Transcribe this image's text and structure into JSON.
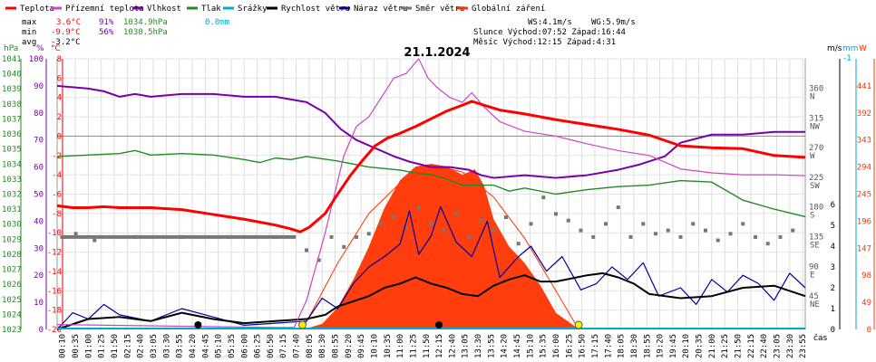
{
  "chart_data": {
    "type": "line",
    "title": "21.1.2024",
    "xlabel": "čas",
    "legend": [
      {
        "label": "Teplota",
        "color": "#ff0000"
      },
      {
        "label": "Přízemní teplota",
        "color": "#cc44cc"
      },
      {
        "label": "Vlhkost",
        "color": "#7700aa"
      },
      {
        "label": "Tlak",
        "color": "#228b22"
      },
      {
        "label": "Srážky",
        "color": "#00aacc"
      },
      {
        "label": "Rychlost větru",
        "color": "#000000"
      },
      {
        "label": "Náraz větru",
        "color": "#000099"
      },
      {
        "label": "Směr větru",
        "color": "#777777"
      },
      {
        "label": "Globální záření",
        "color": "#ff3300"
      }
    ],
    "stats": {
      "max": {
        "label": "max",
        "temp": "3.6°C",
        "hum": "91%",
        "press": "1034.9hPa",
        "rain": "0.0mm"
      },
      "min": {
        "label": "min",
        "temp": "-9.9°C",
        "hum": "56%",
        "press": "1030.5hPa"
      },
      "avg": {
        "label": "avg",
        "temp": "-3.2°C"
      }
    },
    "info": {
      "wind": "WS:4.1m/s",
      "gust": "WG:5.9m/s",
      "sun": "Slunce Východ:07:52  Západ:16:44",
      "moon": "Měsíc  Východ:12:15  Západ:4:31"
    },
    "axes": {
      "hpa_title": "hPa",
      "pct_title": "%",
      "degc_title": "°C",
      "ms_title": "m/s",
      "mm_title": "mm",
      "w_title": "W",
      "mm_top": "-1",
      "hpa": [
        "1023",
        "1024",
        "1025",
        "1026",
        "1027",
        "1028",
        "1029",
        "1030",
        "1031",
        "1032",
        "1033",
        "1034",
        "1035",
        "1036",
        "1037",
        "1038",
        "1039",
        "1040",
        "1041"
      ],
      "pct": [
        "0",
        "10",
        "20",
        "30",
        "40",
        "50",
        "60",
        "70",
        "80",
        "90",
        "100"
      ],
      "degc": [
        "-20",
        "-18",
        "-16",
        "-14",
        "-12",
        "-10",
        "-8",
        "-6",
        "-4",
        "-2",
        "0",
        "2",
        "4",
        "6",
        "8"
      ],
      "ms": [
        "0",
        "1",
        "2",
        "3",
        "4",
        "5",
        "6"
      ],
      "dir": [
        {
          "deg": 45,
          "label": "45",
          "dir": "NE"
        },
        {
          "deg": 90,
          "label": "90",
          "dir": "E"
        },
        {
          "deg": 135,
          "label": "135",
          "dir": "SE"
        },
        {
          "deg": 180,
          "label": "180",
          "dir": "S"
        },
        {
          "deg": 225,
          "label": "225",
          "dir": "SW"
        },
        {
          "deg": 270,
          "label": "270",
          "dir": "W"
        },
        {
          "deg": 315,
          "label": "315",
          "dir": "NW"
        },
        {
          "deg": 360,
          "label": "360",
          "dir": "N"
        }
      ],
      "w": [
        "0",
        "49",
        "98",
        "147",
        "196",
        "245",
        "294",
        "343",
        "392",
        "441"
      ]
    },
    "time_labels": [
      "00:10",
      "00:35",
      "01:00",
      "01:25",
      "01:50",
      "02:15",
      "02:40",
      "03:05",
      "03:30",
      "03:55",
      "04:20",
      "04:45",
      "05:10",
      "05:35",
      "06:00",
      "06:25",
      "06:50",
      "07:15",
      "07:40",
      "08:05",
      "08:30",
      "08:55",
      "09:20",
      "09:45",
      "10:10",
      "10:35",
      "11:00",
      "11:25",
      "11:50",
      "12:15",
      "12:40",
      "13:05",
      "13:30",
      "13:55",
      "14:20",
      "14:45",
      "15:10",
      "15:35",
      "16:00",
      "16:25",
      "16:50",
      "17:15",
      "17:40",
      "18:05",
      "18:30",
      "18:55",
      "19:20",
      "19:45",
      "20:10",
      "20:35",
      "21:00",
      "21:25",
      "21:50",
      "22:15",
      "22:40",
      "23:05",
      "23:30",
      "23:55"
    ],
    "xlim_hours": [
      0,
      24
    ],
    "grid": true,
    "sunrise_h": 7.87,
    "sunset_h": 16.73,
    "moonrise_h": 12.25,
    "moonset_h": 4.52,
    "temperature_c": [
      [
        0,
        -7.2
      ],
      [
        0.5,
        -7.4
      ],
      [
        1,
        -7.4
      ],
      [
        1.5,
        -7.3
      ],
      [
        2,
        -7.4
      ],
      [
        3,
        -7.4
      ],
      [
        4,
        -7.6
      ],
      [
        5,
        -8.1
      ],
      [
        6,
        -8.6
      ],
      [
        7,
        -9.2
      ],
      [
        7.5,
        -9.6
      ],
      [
        7.8,
        -9.9
      ],
      [
        8.1,
        -9.4
      ],
      [
        8.6,
        -8.0
      ],
      [
        9.0,
        -6.0
      ],
      [
        9.4,
        -4.1
      ],
      [
        9.8,
        -2.5
      ],
      [
        10.2,
        -1.0
      ],
      [
        10.6,
        -0.2
      ],
      [
        11.0,
        0.3
      ],
      [
        11.5,
        1.0
      ],
      [
        12.0,
        1.8
      ],
      [
        12.5,
        2.6
      ],
      [
        13.0,
        3.2
      ],
      [
        13.3,
        3.6
      ],
      [
        13.7,
        3.2
      ],
      [
        14.2,
        2.7
      ],
      [
        15.0,
        2.3
      ],
      [
        16.0,
        1.7
      ],
      [
        17.0,
        1.2
      ],
      [
        18.0,
        0.7
      ],
      [
        19.0,
        0.1
      ],
      [
        20.0,
        -1.0
      ],
      [
        21.0,
        -1.2
      ],
      [
        22.0,
        -1.3
      ],
      [
        23.0,
        -2.0
      ],
      [
        24.0,
        -2.2
      ]
    ],
    "humidity_pct": [
      [
        0,
        90
      ],
      [
        1,
        89
      ],
      [
        1.5,
        88
      ],
      [
        2,
        86
      ],
      [
        2.5,
        87
      ],
      [
        3,
        86
      ],
      [
        4,
        87
      ],
      [
        5,
        87
      ],
      [
        6,
        86
      ],
      [
        7,
        86
      ],
      [
        8,
        84
      ],
      [
        8.6,
        80
      ],
      [
        9.1,
        74
      ],
      [
        9.6,
        70
      ],
      [
        10.2,
        67
      ],
      [
        10.8,
        64
      ],
      [
        11.3,
        62
      ],
      [
        12,
        60
      ],
      [
        12.6,
        60
      ],
      [
        13.2,
        59
      ],
      [
        13.6,
        57
      ],
      [
        14,
        56
      ],
      [
        15,
        57
      ],
      [
        16,
        56
      ],
      [
        17,
        57
      ],
      [
        18,
        59
      ],
      [
        18.7,
        61
      ],
      [
        19.5,
        64
      ],
      [
        20,
        69
      ],
      [
        21,
        72
      ],
      [
        22,
        72
      ],
      [
        23,
        73
      ],
      [
        24,
        73
      ]
    ],
    "pressure_hpa": [
      [
        0,
        1034.5
      ],
      [
        1,
        1034.6
      ],
      [
        2,
        1034.7
      ],
      [
        2.5,
        1034.9
      ],
      [
        3,
        1034.6
      ],
      [
        4,
        1034.7
      ],
      [
        5,
        1034.6
      ],
      [
        6,
        1034.3
      ],
      [
        6.5,
        1034.1
      ],
      [
        7,
        1034.4
      ],
      [
        7.5,
        1034.3
      ],
      [
        8,
        1034.5
      ],
      [
        9,
        1034.2
      ],
      [
        10,
        1033.8
      ],
      [
        11,
        1033.6
      ],
      [
        11.5,
        1033.4
      ],
      [
        12,
        1033.3
      ],
      [
        12.5,
        1033.0
      ],
      [
        13,
        1032.6
      ],
      [
        14,
        1032.6
      ],
      [
        14.5,
        1032.2
      ],
      [
        15,
        1032.4
      ],
      [
        16,
        1032.0
      ],
      [
        17,
        1032.3
      ],
      [
        18,
        1032.5
      ],
      [
        19,
        1032.6
      ],
      [
        20,
        1032.9
      ],
      [
        21,
        1032.8
      ],
      [
        22,
        1031.6
      ],
      [
        23,
        1031.0
      ],
      [
        24,
        1030.5
      ]
    ],
    "ground_temp_c": [
      [
        0,
        -19.5
      ],
      [
        7.0,
        -19.8
      ],
      [
        7.6,
        -19.8
      ],
      [
        8.0,
        -17.0
      ],
      [
        8.6,
        -10.0
      ],
      [
        9.2,
        -2.0
      ],
      [
        9.6,
        1.0
      ],
      [
        10.0,
        2.0
      ],
      [
        10.4,
        4.0
      ],
      [
        10.8,
        6.0
      ],
      [
        11.2,
        6.5
      ],
      [
        11.6,
        8.0
      ],
      [
        11.9,
        6.0
      ],
      [
        12.2,
        5.0
      ],
      [
        12.6,
        4.0
      ],
      [
        13.0,
        3.5
      ],
      [
        13.3,
        4.5
      ],
      [
        13.7,
        3.0
      ],
      [
        14.2,
        1.5
      ],
      [
        15.0,
        0.5
      ],
      [
        16.0,
        0.0
      ],
      [
        17.0,
        -0.8
      ],
      [
        18.0,
        -1.5
      ],
      [
        19.0,
        -2.0
      ],
      [
        20.0,
        -3.4
      ],
      [
        21.0,
        -3.8
      ],
      [
        22.0,
        -4.0
      ],
      [
        23.0,
        -4.0
      ],
      [
        24.0,
        -4.1
      ]
    ],
    "wind_speed_ms": [
      [
        0,
        0
      ],
      [
        1,
        0.5
      ],
      [
        2,
        0.6
      ],
      [
        3,
        0.4
      ],
      [
        4,
        0.8
      ],
      [
        5,
        0.5
      ],
      [
        6,
        0.3
      ],
      [
        7,
        0.4
      ],
      [
        8,
        0.5
      ],
      [
        8.6,
        0.7
      ],
      [
        9,
        1.1
      ],
      [
        10,
        1.6
      ],
      [
        10.5,
        2.0
      ],
      [
        11,
        2.2
      ],
      [
        11.5,
        2.5
      ],
      [
        12,
        2.2
      ],
      [
        12.5,
        2.0
      ],
      [
        13,
        1.7
      ],
      [
        13.5,
        1.6
      ],
      [
        14,
        2.1
      ],
      [
        14.5,
        2.4
      ],
      [
        15,
        2.6
      ],
      [
        15.5,
        2.3
      ],
      [
        16,
        2.3
      ],
      [
        17,
        2.6
      ],
      [
        17.5,
        2.7
      ],
      [
        18,
        2.5
      ],
      [
        18.5,
        2.2
      ],
      [
        19,
        1.7
      ],
      [
        20,
        1.5
      ],
      [
        21,
        1.6
      ],
      [
        22,
        2.0
      ],
      [
        23,
        2.1
      ],
      [
        24,
        1.6
      ]
    ],
    "wind_gust_ms": [
      [
        0,
        0
      ],
      [
        0.5,
        0.8
      ],
      [
        1.0,
        0.5
      ],
      [
        1.5,
        1.2
      ],
      [
        2,
        0.7
      ],
      [
        3,
        0.4
      ],
      [
        4,
        1.0
      ],
      [
        5,
        0.6
      ],
      [
        6,
        0.2
      ],
      [
        7,
        0.3
      ],
      [
        8,
        0.4
      ],
      [
        8.5,
        1.5
      ],
      [
        9,
        1.0
      ],
      [
        9.5,
        2.2
      ],
      [
        10,
        3.0
      ],
      [
        10.5,
        3.5
      ],
      [
        11,
        4.1
      ],
      [
        11.3,
        5.7
      ],
      [
        11.6,
        3.6
      ],
      [
        12,
        4.5
      ],
      [
        12.3,
        5.9
      ],
      [
        12.8,
        4.2
      ],
      [
        13.3,
        3.5
      ],
      [
        13.8,
        5.2
      ],
      [
        14.2,
        2.5
      ],
      [
        14.8,
        3.5
      ],
      [
        15.2,
        4.0
      ],
      [
        15.7,
        2.8
      ],
      [
        16.2,
        3.5
      ],
      [
        16.8,
        1.9
      ],
      [
        17.3,
        2.2
      ],
      [
        17.8,
        3.0
      ],
      [
        18.3,
        2.4
      ],
      [
        18.8,
        3.2
      ],
      [
        19.3,
        1.6
      ],
      [
        20,
        2.0
      ],
      [
        20.5,
        1.2
      ],
      [
        21,
        2.4
      ],
      [
        21.5,
        1.8
      ],
      [
        22,
        2.6
      ],
      [
        22.5,
        2.2
      ],
      [
        23,
        1.4
      ],
      [
        23.5,
        2.7
      ],
      [
        24,
        2.0
      ]
    ],
    "wind_dir_deg": [
      [
        0.2,
        140
      ],
      [
        0.6,
        145
      ],
      [
        1.2,
        135
      ],
      [
        2.5,
        140
      ],
      [
        4.0,
        140
      ],
      [
        5.5,
        140
      ],
      [
        7.0,
        140
      ],
      [
        7.6,
        140
      ],
      [
        8.0,
        120
      ],
      [
        8.4,
        105
      ],
      [
        8.8,
        140
      ],
      [
        9.2,
        125
      ],
      [
        9.6,
        140
      ],
      [
        10.0,
        145
      ],
      [
        10.4,
        160
      ],
      [
        10.8,
        170
      ],
      [
        11.2,
        155
      ],
      [
        11.6,
        185
      ],
      [
        12.0,
        160
      ],
      [
        12.4,
        150
      ],
      [
        12.8,
        175
      ],
      [
        13.2,
        140
      ],
      [
        13.6,
        165
      ],
      [
        14.0,
        150
      ],
      [
        14.4,
        170
      ],
      [
        14.8,
        130
      ],
      [
        15.2,
        160
      ],
      [
        15.6,
        200
      ],
      [
        16.0,
        175
      ],
      [
        16.4,
        165
      ],
      [
        16.8,
        150
      ],
      [
        17.2,
        140
      ],
      [
        17.6,
        160
      ],
      [
        18.0,
        185
      ],
      [
        18.4,
        140
      ],
      [
        18.8,
        160
      ],
      [
        19.2,
        145
      ],
      [
        19.6,
        150
      ],
      [
        20.0,
        140
      ],
      [
        20.4,
        160
      ],
      [
        20.8,
        150
      ],
      [
        21.2,
        135
      ],
      [
        21.6,
        145
      ],
      [
        22.0,
        160
      ],
      [
        22.4,
        140
      ],
      [
        22.8,
        130
      ],
      [
        23.2,
        140
      ],
      [
        23.6,
        150
      ]
    ],
    "solar_w": [
      [
        7.9,
        0
      ],
      [
        8.5,
        10
      ],
      [
        9.0,
        40
      ],
      [
        9.5,
        90
      ],
      [
        10.0,
        150
      ],
      [
        10.5,
        220
      ],
      [
        11.0,
        270
      ],
      [
        11.5,
        295
      ],
      [
        12.0,
        300
      ],
      [
        12.5,
        295
      ],
      [
        13.0,
        280
      ],
      [
        13.4,
        290
      ],
      [
        13.7,
        260
      ],
      [
        14.0,
        200
      ],
      [
        14.5,
        150
      ],
      [
        15.0,
        120
      ],
      [
        15.5,
        80
      ],
      [
        16.0,
        30
      ],
      [
        16.5,
        10
      ],
      [
        16.73,
        0
      ]
    ],
    "clear_sky_w": [
      [
        7.87,
        0
      ],
      [
        9.0,
        120
      ],
      [
        10.0,
        210
      ],
      [
        11.0,
        265
      ],
      [
        12.0,
        290
      ],
      [
        12.5,
        292
      ],
      [
        13.0,
        285
      ],
      [
        14.0,
        240
      ],
      [
        15.0,
        165
      ],
      [
        16.0,
        70
      ],
      [
        16.73,
        0
      ]
    ]
  }
}
